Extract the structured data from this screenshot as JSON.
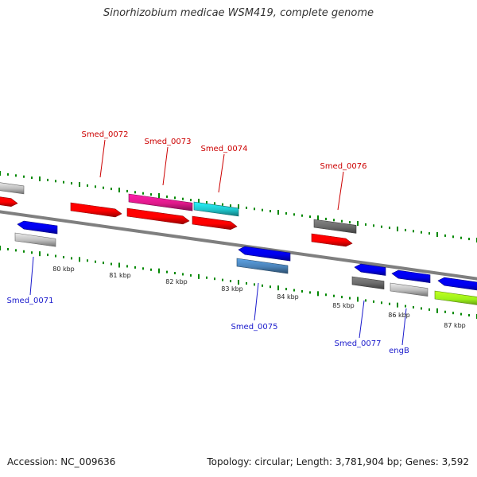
{
  "title": "Sinorhizobium medicae WSM419, complete genome",
  "footer": {
    "accession": "Accession: NC_009636",
    "summary": "Topology: circular; Length: 3,781,904 bp; Genes: 3,592"
  },
  "colors": {
    "forward_label": "#cc0000",
    "reverse_label": "#1a1acc",
    "backbone": "#888888",
    "tick": "#008800",
    "red": "#ff0000",
    "magenta": "#e0198a",
    "cyan": "#1fc6cc",
    "grey": "#bdbdbd",
    "darkgrey": "#6a6a6a",
    "blue": "#0000ee",
    "steelblue": "#4a82b8",
    "lime": "#9cf21a"
  },
  "scale_labels": [
    "80 kbp",
    "81 kbp",
    "82 kbp",
    "83 kbp",
    "84 kbp",
    "85 kbp",
    "86 kbp",
    "87 kbp"
  ],
  "gene_labels": [
    {
      "text": "Smed_0072",
      "strand": "forward"
    },
    {
      "text": "Smed_0073",
      "strand": "forward"
    },
    {
      "text": "Smed_0074",
      "strand": "forward"
    },
    {
      "text": "Smed_0076",
      "strand": "forward"
    },
    {
      "text": "Smed_0071",
      "strand": "reverse"
    },
    {
      "text": "Smed_0075",
      "strand": "reverse"
    },
    {
      "text": "Smed_0077",
      "strand": "reverse"
    },
    {
      "text": "engB",
      "strand": "reverse"
    }
  ],
  "features": [
    {
      "name": "forward-edge-grey",
      "color": "grey",
      "direction": "none"
    },
    {
      "name": "forward-edge-red",
      "color": "red",
      "direction": "right"
    },
    {
      "name": "Smed_0072",
      "color": "red",
      "direction": "right"
    },
    {
      "name": "magenta-feature",
      "color": "magenta",
      "direction": "none"
    },
    {
      "name": "cyan-feature",
      "color": "cyan",
      "direction": "none"
    },
    {
      "name": "Smed_0073",
      "color": "red",
      "direction": "right"
    },
    {
      "name": "Smed_0074",
      "color": "red",
      "direction": "right"
    },
    {
      "name": "darkgrey-feature-upper",
      "color": "darkgrey",
      "direction": "none"
    },
    {
      "name": "Smed_0076",
      "color": "red",
      "direction": "right"
    },
    {
      "name": "Smed_0071",
      "color": "blue",
      "direction": "left"
    },
    {
      "name": "grey-feature-0071",
      "color": "grey",
      "direction": "none"
    },
    {
      "name": "Smed_0075",
      "color": "blue",
      "direction": "left"
    },
    {
      "name": "steelblue-feature",
      "color": "steelblue",
      "direction": "none"
    },
    {
      "name": "Smed_0077",
      "color": "blue",
      "direction": "left"
    },
    {
      "name": "darkgrey-feature-lower",
      "color": "darkgrey",
      "direction": "none"
    },
    {
      "name": "engB",
      "color": "blue",
      "direction": "left"
    },
    {
      "name": "grey-feature-engb",
      "color": "grey",
      "direction": "none"
    },
    {
      "name": "blue-feature-edge",
      "color": "blue",
      "direction": "left"
    },
    {
      "name": "lime-feature",
      "color": "lime",
      "direction": "none"
    }
  ]
}
